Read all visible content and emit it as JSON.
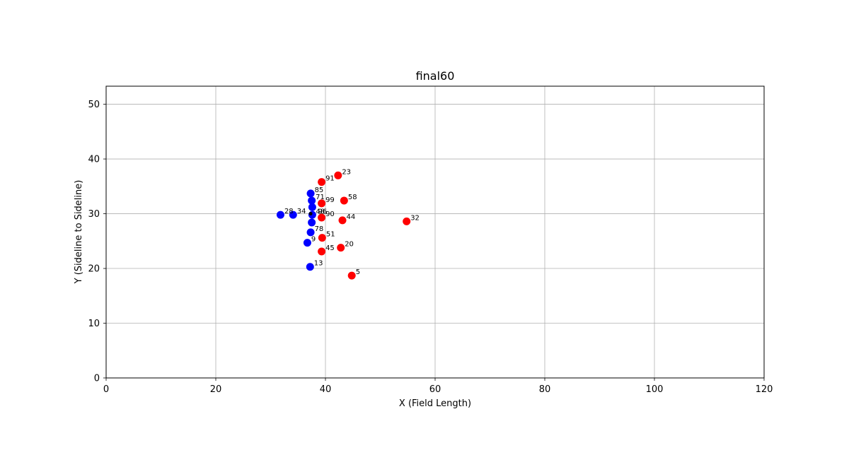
{
  "chart_data": {
    "type": "scatter",
    "title": "final60",
    "xlabel": "X (Field Length)",
    "ylabel": "Y (Sideline to Sideline)",
    "xlim": [
      0,
      120
    ],
    "ylim": [
      0,
      53.3
    ],
    "xticks": [
      0,
      20,
      40,
      60,
      80,
      100,
      120
    ],
    "yticks": [
      0,
      10,
      20,
      30,
      40,
      50
    ],
    "grid": true,
    "series": [
      {
        "color": "#0000ff",
        "points": [
          {
            "x": 31.8,
            "y": 29.8,
            "label": "28"
          },
          {
            "x": 34.1,
            "y": 29.8,
            "label": "34"
          },
          {
            "x": 37.3,
            "y": 33.7,
            "label": "85"
          },
          {
            "x": 37.5,
            "y": 32.4,
            "label": "71"
          },
          {
            "x": 37.6,
            "y": 31.2,
            "label": ""
          },
          {
            "x": 37.6,
            "y": 29.8,
            "label": ""
          },
          {
            "x": 37.5,
            "y": 28.4,
            "label": ""
          },
          {
            "x": 37.3,
            "y": 26.6,
            "label": "78"
          },
          {
            "x": 36.7,
            "y": 24.7,
            "label": "9"
          },
          {
            "x": 37.2,
            "y": 20.3,
            "label": "13"
          }
        ]
      },
      {
        "color": "#ff0000",
        "points": [
          {
            "x": 42.3,
            "y": 37.0,
            "label": "23"
          },
          {
            "x": 39.3,
            "y": 35.8,
            "label": "91"
          },
          {
            "x": 43.4,
            "y": 32.4,
            "label": "58"
          },
          {
            "x": 39.3,
            "y": 31.9,
            "label": "99"
          },
          {
            "x": 39.3,
            "y": 29.3,
            "label": "90"
          },
          {
            "x": 43.1,
            "y": 28.8,
            "label": "44"
          },
          {
            "x": 54.8,
            "y": 28.6,
            "label": "32"
          },
          {
            "x": 39.4,
            "y": 25.6,
            "label": "51"
          },
          {
            "x": 42.8,
            "y": 23.8,
            "label": "20"
          },
          {
            "x": 39.3,
            "y": 23.1,
            "label": "45"
          },
          {
            "x": 44.8,
            "y": 18.7,
            "label": "5"
          }
        ]
      }
    ],
    "ball": {
      "x": 37.3,
      "y": 30.0,
      "color": "#000000",
      "label": "football"
    },
    "extra_labels": [
      {
        "x": 37.6,
        "y": 29.9,
        "text": "48"
      },
      {
        "x": 38.0,
        "y": 29.9,
        "text": "96"
      }
    ]
  }
}
